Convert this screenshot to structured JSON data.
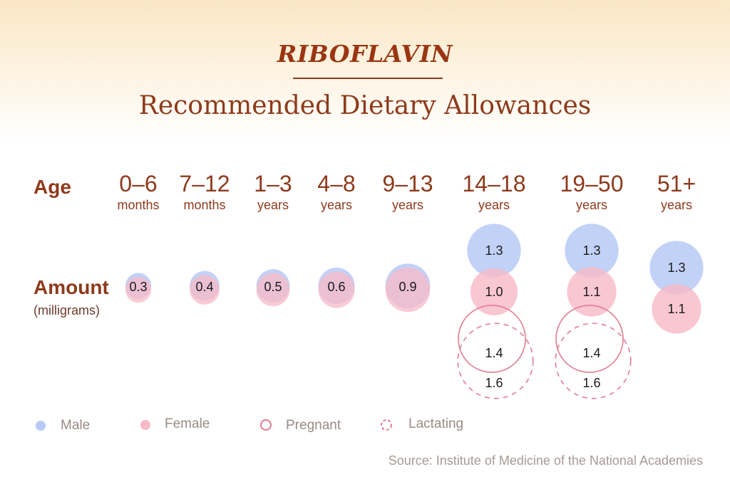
{
  "title": "RIBOFLAVIN",
  "subtitle": "Recommended Dietary Allowances",
  "labels": {
    "age": "Age",
    "amount": "Amount",
    "amount_unit": "(milligrams)"
  },
  "chart_data": {
    "type": "scatter",
    "encoding": "bubble",
    "unit": "milligrams",
    "categories": [
      {
        "range": "0–6",
        "unit": "months"
      },
      {
        "range": "7–12",
        "unit": "months"
      },
      {
        "range": "1–3",
        "unit": "years"
      },
      {
        "range": "4–8",
        "unit": "years"
      },
      {
        "range": "9–13",
        "unit": "years"
      },
      {
        "range": "14–18",
        "unit": "years"
      },
      {
        "range": "19–50",
        "unit": "years"
      },
      {
        "range": "51+",
        "unit": "years"
      }
    ],
    "series": [
      {
        "name": "Male",
        "color": "#b7c9f4",
        "values": [
          0.3,
          0.4,
          0.5,
          0.6,
          0.9,
          1.3,
          1.3,
          1.3
        ]
      },
      {
        "name": "Female",
        "color": "#f7b9c6",
        "values": [
          0.3,
          0.4,
          0.5,
          0.6,
          0.9,
          1.0,
          1.1,
          1.1
        ]
      },
      {
        "name": "Pregnant",
        "color": "#e27d93",
        "values": [
          null,
          null,
          null,
          null,
          null,
          1.4,
          1.4,
          null
        ]
      },
      {
        "name": "Lactating",
        "color": "#e27d93",
        "values": [
          null,
          null,
          null,
          null,
          null,
          1.6,
          1.6,
          null
        ]
      }
    ],
    "combined_labels": [
      "0.3",
      "0.4",
      "0.5",
      "0.6",
      "0.9"
    ]
  },
  "source": "Source: Institute of Medicine of the National Academies"
}
